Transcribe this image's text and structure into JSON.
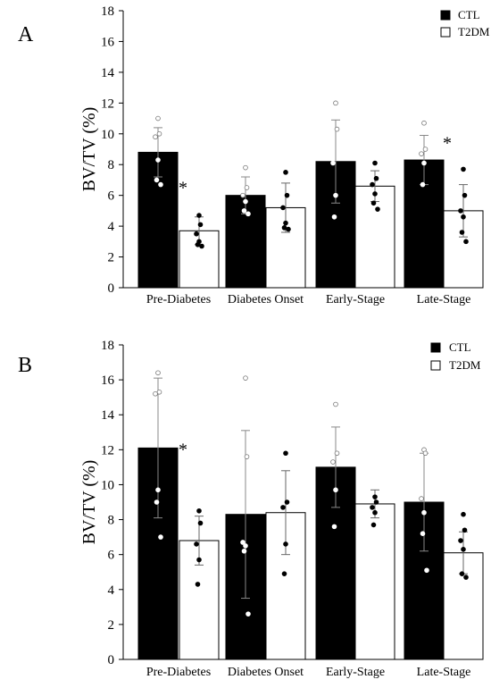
{
  "chart_data": [
    {
      "panel_label": "A",
      "type": "bar",
      "categories": [
        "Pre-Diabetes",
        "Diabetes Onset",
        "Early-Stage",
        "Late-Stage"
      ],
      "ylabel": "BV/TV (%)",
      "ylim": [
        0,
        18
      ],
      "yticks": [
        "0",
        "2",
        "4",
        "6",
        "8",
        "10",
        "12",
        "14",
        "16",
        "18"
      ],
      "legend_position": "top-right",
      "series": [
        {
          "name": "CTL",
          "color": "#000000",
          "values": [
            8.8,
            6.0,
            8.2,
            8.3
          ],
          "errors": [
            1.6,
            1.2,
            2.7,
            1.6
          ],
          "points": [
            [
              11.0,
              10.0,
              9.8,
              8.3,
              7.0,
              6.7
            ],
            [
              7.8,
              6.5,
              6.0,
              5.6,
              5.0,
              4.8
            ],
            [
              12.0,
              10.3,
              8.1,
              6.0,
              4.6
            ],
            [
              10.7,
              9.0,
              8.7,
              8.1,
              6.7
            ]
          ]
        },
        {
          "name": "T2DM",
          "color": "#ffffff",
          "values": [
            3.7,
            5.2,
            6.6,
            5.0
          ],
          "errors": [
            0.9,
            1.6,
            1.0,
            1.7
          ],
          "points": [
            [
              4.7,
              4.1,
              3.5,
              3.0,
              2.8,
              2.7
            ],
            [
              7.5,
              6.0,
              5.2,
              4.2,
              3.9,
              3.8
            ],
            [
              8.1,
              7.1,
              6.7,
              6.1,
              5.5,
              5.1
            ],
            [
              7.7,
              6.0,
              5.0,
              4.6,
              3.6,
              3.0
            ]
          ]
        }
      ],
      "annotations": [
        {
          "category": "Pre-Diabetes",
          "series": "T2DM",
          "text": "*",
          "y": 6.7
        },
        {
          "category": "Late-Stage",
          "series": "T2DM",
          "text": "*",
          "y": 9.6
        }
      ]
    },
    {
      "panel_label": "B",
      "type": "bar",
      "categories": [
        "Pre-Diabetes",
        "Diabetes Onset",
        "Early-Stage",
        "Late-Stage"
      ],
      "ylabel": "BV/TV (%)",
      "ylim": [
        0,
        18
      ],
      "yticks": [
        "0",
        "2",
        "4",
        "6",
        "8",
        "10",
        "12",
        "14",
        "16",
        "18"
      ],
      "legend_position": "top-right",
      "series": [
        {
          "name": "CTL",
          "color": "#000000",
          "values": [
            12.1,
            8.3,
            11.0,
            9.0
          ],
          "errors": [
            4.0,
            4.8,
            2.3,
            2.8
          ],
          "points": [
            [
              16.4,
              15.3,
              15.2,
              9.7,
              9.0,
              7.0
            ],
            [
              16.1,
              11.6,
              6.7,
              6.5,
              6.2,
              2.6
            ],
            [
              14.6,
              11.8,
              11.3,
              9.7,
              7.6
            ],
            [
              12.0,
              11.8,
              9.2,
              8.4,
              7.2,
              5.1
            ]
          ]
        },
        {
          "name": "T2DM",
          "color": "#ffffff",
          "values": [
            6.8,
            8.4,
            8.9,
            6.1
          ],
          "errors": [
            1.4,
            2.4,
            0.8,
            1.2
          ],
          "points": [
            [
              8.5,
              7.8,
              6.6,
              5.7,
              4.3
            ],
            [
              11.8,
              9.0,
              8.7,
              6.6,
              4.9
            ],
            [
              9.3,
              9.0,
              8.7,
              8.4,
              7.7
            ],
            [
              8.3,
              7.4,
              6.8,
              6.3,
              4.9,
              4.7
            ]
          ]
        }
      ],
      "annotations": [
        {
          "category": "Pre-Diabetes",
          "series": "T2DM",
          "text": "*",
          "y": 12.2
        }
      ]
    }
  ]
}
